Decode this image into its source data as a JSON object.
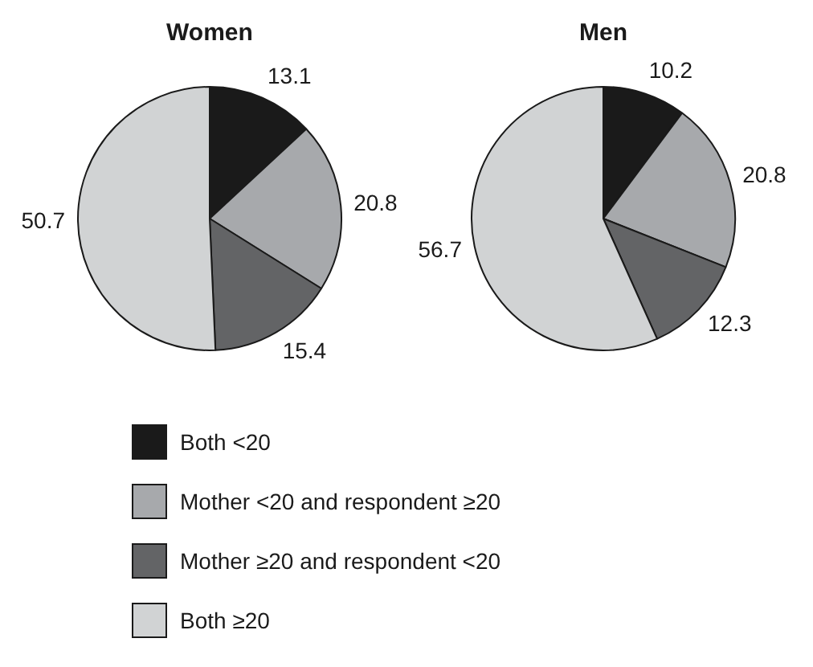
{
  "chart_data": [
    {
      "type": "pie",
      "title": "Women",
      "categories": [
        "Both <20",
        "Mother <20 and respondent  ≥20",
        "Mother  ≥20 and respondent <20",
        "Both  ≥20"
      ],
      "values": [
        13.1,
        20.8,
        15.4,
        50.7
      ],
      "colors": [
        "#1a1a1a",
        "#a7a9ac",
        "#636466",
        "#d1d3d4"
      ],
      "data_labels": true,
      "legend": "bottom"
    },
    {
      "type": "pie",
      "title": "Men",
      "categories": [
        null,
        null,
        null,
        null
      ],
      "values": [
        10.2,
        20.8,
        12.3,
        56.7
      ],
      "colors": [
        "#1a1a1a",
        "#a7a9ac",
        "#636466",
        "#d1d3d4"
      ],
      "data_labels": true
    }
  ]
}
